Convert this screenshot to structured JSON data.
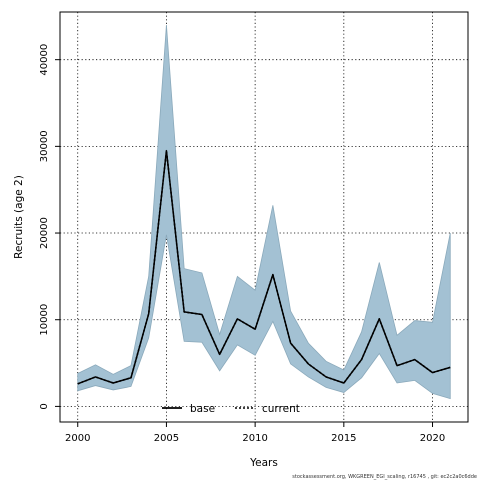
{
  "chart_data": {
    "type": "area",
    "xlabel": "Years",
    "ylabel": "Recruits (age 2)",
    "xlim": [
      1999,
      2022
    ],
    "ylim": [
      -1800,
      45500
    ],
    "xticks": [
      2000,
      2005,
      2010,
      2015,
      2020
    ],
    "yticks": [
      0,
      10000,
      20000,
      30000,
      40000
    ],
    "grid": true,
    "legend_position": "bottom-center",
    "x": [
      2000,
      2001,
      2002,
      2003,
      2004,
      2005,
      2006,
      2007,
      2008,
      2009,
      2010,
      2011,
      2012,
      2013,
      2014,
      2015,
      2016,
      2017,
      2018,
      2019,
      2020,
      2021
    ],
    "band": {
      "upper": [
        3800,
        4800,
        3700,
        4700,
        15000,
        44000,
        15900,
        15400,
        8300,
        15000,
        13400,
        23200,
        11000,
        7300,
        5200,
        4200,
        8600,
        16600,
        8200,
        9900,
        9700,
        20000
      ],
      "lower": [
        1800,
        2400,
        1900,
        2300,
        7900,
        19800,
        7500,
        7400,
        4100,
        7100,
        5900,
        9800,
        4900,
        3400,
        2200,
        1600,
        3300,
        6100,
        2700,
        3000,
        1500,
        900
      ],
      "color": "#a3c1d3",
      "edge_color": "#8aa9bb"
    },
    "series": [
      {
        "name": "base",
        "style": "solid",
        "color": "#000000",
        "values": [
          2600,
          3400,
          2700,
          3300,
          10700,
          29500,
          10900,
          10600,
          6000,
          10100,
          8900,
          15200,
          7300,
          4900,
          3400,
          2700,
          5400,
          10100,
          4700,
          5400,
          3900,
          4500
        ]
      },
      {
        "name": "current",
        "style": "dotted",
        "color": "#000000",
        "values": [
          2600,
          3400,
          2700,
          3300,
          10700,
          29500,
          10900,
          10600,
          6000,
          10100,
          8900,
          15200,
          7300,
          4900,
          3400,
          2700,
          5400,
          10100,
          4700,
          5400,
          3900,
          4500
        ]
      }
    ]
  },
  "footer_text": "stockassessment.org, WKGREEN_EGI_scaling, r16745 ,  git: ec2c2a0c6dde"
}
